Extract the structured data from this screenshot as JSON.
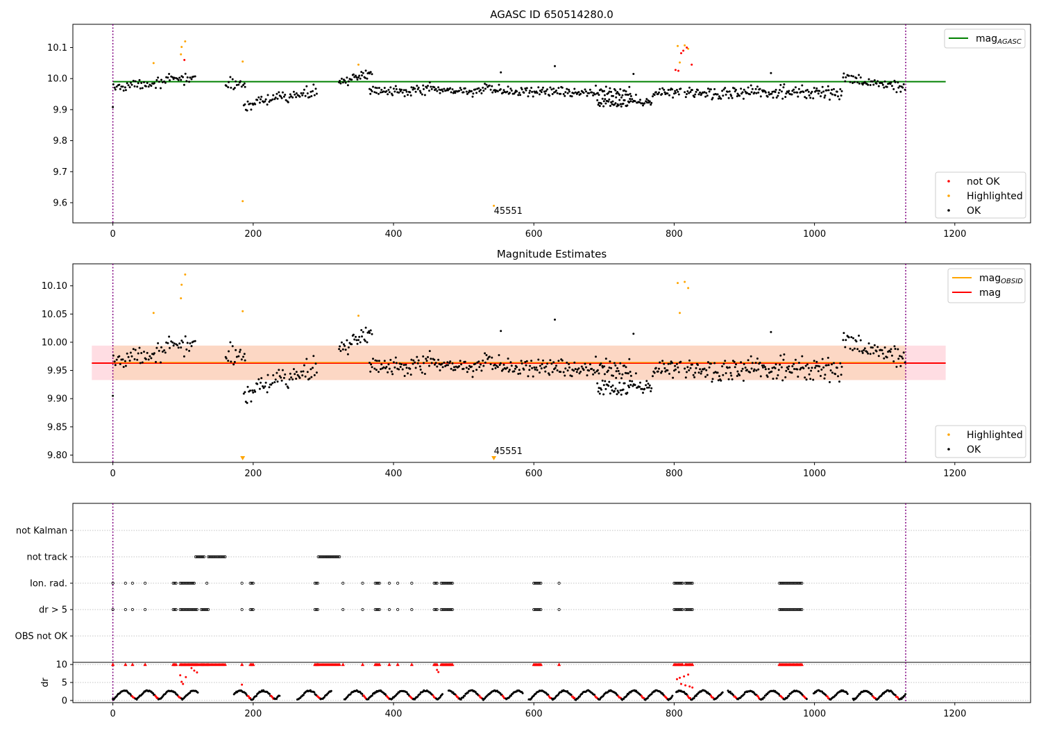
{
  "chart_data": [
    {
      "type": "scatter",
      "title": "AGASC ID 650514280.0",
      "xlim": [
        -57,
        1308
      ],
      "ylim": [
        9.535,
        10.175
      ],
      "xticks": [
        "0",
        "200",
        "400",
        "600",
        "800",
        "1000",
        "1200"
      ],
      "xtick_values": [
        0,
        200,
        400,
        600,
        800,
        1000,
        1200
      ],
      "yticks": [
        "9.6",
        "9.7",
        "9.8",
        "9.9",
        "10.0",
        "10.1"
      ],
      "ytick_values": [
        9.6,
        9.7,
        9.8,
        9.9,
        10.0,
        10.1
      ],
      "grid": false,
      "reference_line": {
        "name": "mag_AGASC",
        "value": 9.99,
        "x_range": [
          0,
          1187
        ],
        "color": "#008000"
      },
      "vertical_lines": [
        0,
        1130
      ],
      "legend_top": {
        "position": "top-right",
        "entries": [
          {
            "label": "mag",
            "subscript": "AGASC",
            "color": "#008000"
          }
        ]
      },
      "legend_bottom": {
        "position": "bottom-right",
        "entries": [
          {
            "label": "not OK",
            "color": "#ff0000"
          },
          {
            "label": "Highlighted",
            "color": "#ffa500"
          },
          {
            "label": "OK",
            "color": "#000000"
          }
        ]
      },
      "annotation": {
        "text": "45551",
        "x": 543,
        "y": 9.575
      },
      "series": [
        {
          "name": "OK",
          "color": "#000000",
          "segments": [
            {
              "x0": 0,
              "x1": 118,
              "base": 9.97,
              "slope": 0.035,
              "amp": 0.018,
              "n": 70
            },
            {
              "x0": 160,
              "x1": 190,
              "base": 9.98,
              "slope": 0.0,
              "amp": 0.02,
              "n": 18
            },
            {
              "x0": 186,
              "x1": 292,
              "base": 9.915,
              "slope": 0.045,
              "amp": 0.02,
              "n": 70
            },
            {
              "x0": 322,
              "x1": 370,
              "base": 9.99,
              "slope": 0.025,
              "amp": 0.015,
              "n": 35
            },
            {
              "x0": 365,
              "x1": 740,
              "base": 9.965,
              "slope": -0.01,
              "amp": 0.02,
              "n": 260
            },
            {
              "x0": 690,
              "x1": 770,
              "base": 9.925,
              "slope": 0.0,
              "amp": 0.018,
              "n": 65
            },
            {
              "x0": 770,
              "x1": 810,
              "base": 9.95,
              "slope": 0.015,
              "amp": 0.018,
              "n": 30
            },
            {
              "x0": 815,
              "x1": 1040,
              "base": 9.955,
              "slope": 0.0,
              "amp": 0.025,
              "n": 170
            },
            {
              "x0": 1040,
              "x1": 1130,
              "base": 10.0,
              "slope": -0.03,
              "amp": 0.02,
              "n": 60
            }
          ],
          "points": [
            [
              0,
              9.908
            ],
            [
              553,
              10.02
            ],
            [
              742,
              10.015
            ],
            [
              630,
              10.04
            ],
            [
              938,
              10.018
            ]
          ]
        },
        {
          "name": "Highlighted",
          "color": "#ffa500",
          "points": [
            [
              58,
              10.05
            ],
            [
              97,
              10.078
            ],
            [
              98,
              10.102
            ],
            [
              103,
              10.12
            ],
            [
              185,
              10.055
            ],
            [
              185,
              9.605
            ],
            [
              350,
              10.045
            ],
            [
              805,
              10.105
            ],
            [
              808,
              10.052
            ],
            [
              815,
              10.107
            ],
            [
              820,
              10.096
            ],
            [
              543,
              9.59
            ]
          ]
        },
        {
          "name": "not OK",
          "color": "#ff0000",
          "points": [
            [
              102,
              10.06
            ],
            [
              802,
              10.028
            ],
            [
              806,
              10.025
            ],
            [
              810,
              10.082
            ],
            [
              813,
              10.09
            ],
            [
              818,
              10.1
            ],
            [
              825,
              10.045
            ]
          ]
        }
      ]
    },
    {
      "type": "scatter",
      "title": "Magnitude Estimates",
      "xlim": [
        -57,
        1308
      ],
      "ylim": [
        9.787,
        10.139
      ],
      "xticks": [
        "0",
        "200",
        "400",
        "600",
        "800",
        "1000",
        "1200"
      ],
      "xtick_values": [
        0,
        200,
        400,
        600,
        800,
        1000,
        1200
      ],
      "yticks": [
        "9.80",
        "9.85",
        "9.90",
        "9.95",
        "10.00",
        "10.05",
        "10.10"
      ],
      "ytick_values": [
        9.8,
        9.85,
        9.9,
        9.95,
        10.0,
        10.05,
        10.1
      ],
      "grid": false,
      "reference_line": {
        "name": "mag",
        "value": 9.963,
        "x_range": [
          -30,
          1187
        ],
        "color": "#ff0000"
      },
      "band_outer": {
        "y": [
          9.933,
          9.994
        ],
        "x_range": [
          -30,
          1187
        ],
        "color": "#ffdde3"
      },
      "band_inner": {
        "y": [
          9.933,
          9.994
        ],
        "x_range": [
          0,
          1130
        ],
        "color": "#fcd7c4"
      },
      "vertical_lines": [
        0,
        1130
      ],
      "legend_top": {
        "position": "top-right",
        "entries": [
          {
            "label": "mag",
            "subscript": "OBSID",
            "color": "#ffa500"
          },
          {
            "label": "mag",
            "subscript": "",
            "color": "#ff0000"
          }
        ]
      },
      "legend_bottom": {
        "position": "bottom-right",
        "entries": [
          {
            "label": "Highlighted",
            "color": "#ffa500"
          },
          {
            "label": "OK",
            "color": "#000000"
          }
        ]
      },
      "annotation": {
        "text": "45551",
        "x": 543,
        "y": 9.808
      },
      "markers_at_bottom": [
        185,
        543
      ],
      "series": [
        {
          "name": "OK",
          "color": "#000000",
          "segments": [
            {
              "x0": 0,
              "x1": 118,
              "base": 9.965,
              "slope": 0.035,
              "amp": 0.018,
              "n": 70
            },
            {
              "x0": 160,
              "x1": 190,
              "base": 9.975,
              "slope": 0.0,
              "amp": 0.02,
              "n": 18
            },
            {
              "x0": 186,
              "x1": 292,
              "base": 9.91,
              "slope": 0.045,
              "amp": 0.02,
              "n": 70
            },
            {
              "x0": 322,
              "x1": 370,
              "base": 9.99,
              "slope": 0.025,
              "amp": 0.015,
              "n": 35
            },
            {
              "x0": 365,
              "x1": 740,
              "base": 9.962,
              "slope": -0.01,
              "amp": 0.02,
              "n": 260
            },
            {
              "x0": 690,
              "x1": 770,
              "base": 9.922,
              "slope": 0.0,
              "amp": 0.018,
              "n": 65
            },
            {
              "x0": 770,
              "x1": 810,
              "base": 9.948,
              "slope": 0.015,
              "amp": 0.018,
              "n": 30
            },
            {
              "x0": 815,
              "x1": 1040,
              "base": 9.952,
              "slope": 0.0,
              "amp": 0.025,
              "n": 170
            },
            {
              "x0": 1040,
              "x1": 1130,
              "base": 10.0,
              "slope": -0.03,
              "amp": 0.02,
              "n": 60
            }
          ],
          "points": [
            [
              0,
              9.905
            ],
            [
              553,
              10.02
            ],
            [
              742,
              10.015
            ],
            [
              630,
              10.04
            ],
            [
              938,
              10.018
            ]
          ]
        },
        {
          "name": "Highlighted",
          "color": "#ffa500",
          "points": [
            [
              58,
              10.052
            ],
            [
              97,
              10.078
            ],
            [
              98,
              10.102
            ],
            [
              103,
              10.12
            ],
            [
              185,
              10.055
            ],
            [
              350,
              10.047
            ],
            [
              805,
              10.105
            ],
            [
              808,
              10.052
            ],
            [
              815,
              10.107
            ],
            [
              820,
              10.096
            ]
          ]
        }
      ]
    },
    {
      "type": "scatter",
      "title": "",
      "xlim": [
        -57,
        1308
      ],
      "categories": [
        "not Kalman",
        "not track",
        "Ion. rad.",
        "dr > 5",
        "OBS not OK"
      ],
      "grid": true,
      "vertical_lines": [
        0,
        1130
      ],
      "flags": {
        "not track": [
          [
            118,
            130
          ],
          [
            136,
            160
          ],
          [
            293,
            323
          ]
        ],
        "Ion. rad.": [
          [
            0,
            0
          ],
          [
            18,
            18
          ],
          [
            28,
            28
          ],
          [
            46,
            46
          ],
          [
            86,
            90
          ],
          [
            96,
            116
          ],
          [
            134,
            134
          ],
          [
            184,
            184
          ],
          [
            196,
            200
          ],
          [
            288,
            292
          ],
          [
            328,
            328
          ],
          [
            356,
            356
          ],
          [
            374,
            380
          ],
          [
            394,
            394
          ],
          [
            406,
            406
          ],
          [
            426,
            426
          ],
          [
            458,
            462
          ],
          [
            468,
            484
          ],
          [
            600,
            610
          ],
          [
            636,
            636
          ],
          [
            800,
            812
          ],
          [
            816,
            826
          ],
          [
            950,
            982
          ]
        ],
        "dr > 5": [
          [
            0,
            0
          ],
          [
            18,
            18
          ],
          [
            28,
            28
          ],
          [
            46,
            46
          ],
          [
            86,
            90
          ],
          [
            96,
            120
          ],
          [
            126,
            136
          ],
          [
            184,
            184
          ],
          [
            196,
            200
          ],
          [
            288,
            292
          ],
          [
            328,
            328
          ],
          [
            356,
            356
          ],
          [
            374,
            380
          ],
          [
            394,
            394
          ],
          [
            406,
            406
          ],
          [
            426,
            426
          ],
          [
            458,
            462
          ],
          [
            468,
            484
          ],
          [
            600,
            610
          ],
          [
            636,
            636
          ],
          [
            800,
            812
          ],
          [
            816,
            826
          ],
          [
            950,
            982
          ]
        ]
      }
    },
    {
      "type": "scatter",
      "title": "",
      "ylabel": "dr",
      "xlim": [
        -57,
        1308
      ],
      "ylim": [
        -0.6,
        10.6
      ],
      "xticks": [
        "0",
        "200",
        "400",
        "600",
        "800",
        "1000",
        "1200"
      ],
      "xtick_values": [
        0,
        200,
        400,
        600,
        800,
        1000,
        1200
      ],
      "yticks": [
        "0",
        "5",
        "10"
      ],
      "ytick_values": [
        0,
        5,
        10
      ],
      "grid": true,
      "vertical_lines": [
        0,
        1130
      ],
      "clip_value": 10,
      "gaps": [
        [
          122,
          172
        ],
        [
          238,
          262
        ],
        [
          312,
          330
        ],
        [
          470,
          478
        ],
        [
          585,
          592
        ],
        [
          798,
          802
        ],
        [
          870,
          876
        ],
        [
          990,
          998
        ],
        [
          1048,
          1054
        ]
      ],
      "extra_points": [
        [
          96,
          7.0
        ],
        [
          98,
          5.2
        ],
        [
          100,
          4.6
        ],
        [
          104,
          6.5
        ],
        [
          112,
          9.0
        ],
        [
          116,
          8.3
        ],
        [
          120,
          7.8
        ],
        [
          462,
          8.5
        ],
        [
          464,
          7.9
        ],
        [
          804,
          5.9
        ],
        [
          808,
          6.3
        ],
        [
          810,
          4.6
        ],
        [
          814,
          6.7
        ],
        [
          816,
          4.2
        ],
        [
          820,
          7.2
        ],
        [
          822,
          3.9
        ],
        [
          826,
          3.6
        ],
        [
          184,
          4.4
        ]
      ]
    }
  ]
}
